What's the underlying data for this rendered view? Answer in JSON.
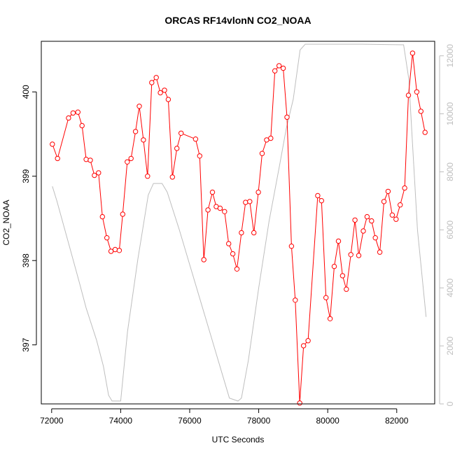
{
  "chart_data": {
    "type": "line",
    "title": "ORCAS RF14vlonN CO2_NOAA",
    "xlabel": "UTC Seconds",
    "ylabel": "CO2_NOAA",
    "xlim": [
      71700,
      83100
    ],
    "ylim": [
      396.3,
      400.6
    ],
    "x_ticks": [
      "72000",
      "74000",
      "76000",
      "78000",
      "80000",
      "82000"
    ],
    "y_ticks": [
      "397",
      "398",
      "399",
      "400"
    ],
    "y2lim": [
      0,
      12500
    ],
    "y2_ticks": [
      "0",
      "2000",
      "4000",
      "6000",
      "8000",
      "10000",
      "12000"
    ],
    "grid": false,
    "colors": {
      "primary": "#ff0000",
      "secondary": "#bebebe",
      "axis": "#000000"
    },
    "series": [
      {
        "axis": "left",
        "style": "line-points",
        "color": "#ff0000",
        "points": [
          [
            72020,
            399.38
          ],
          [
            72170,
            399.21
          ],
          [
            72490,
            399.69
          ],
          [
            72620,
            399.75
          ],
          [
            72760,
            399.76
          ],
          [
            72880,
            399.6
          ],
          [
            73000,
            399.2
          ],
          [
            73120,
            399.19
          ],
          [
            73240,
            399.01
          ],
          [
            73360,
            399.04
          ],
          [
            73470,
            398.52
          ],
          [
            73600,
            398.27
          ],
          [
            73720,
            398.11
          ],
          [
            73840,
            398.13
          ],
          [
            73960,
            398.12
          ],
          [
            74060,
            398.55
          ],
          [
            74190,
            399.17
          ],
          [
            74300,
            399.21
          ],
          [
            74430,
            399.53
          ],
          [
            74540,
            399.83
          ],
          [
            74660,
            399.43
          ],
          [
            74780,
            399.0
          ],
          [
            74900,
            400.11
          ],
          [
            75030,
            400.17
          ],
          [
            75150,
            399.99
          ],
          [
            75270,
            400.02
          ],
          [
            75380,
            399.91
          ],
          [
            75500,
            398.99
          ],
          [
            75630,
            399.33
          ],
          [
            75750,
            399.51
          ],
          [
            76170,
            399.44
          ],
          [
            76290,
            399.24
          ],
          [
            76410,
            398.01
          ],
          [
            76530,
            398.6
          ],
          [
            76660,
            398.81
          ],
          [
            76770,
            398.64
          ],
          [
            76880,
            398.62
          ],
          [
            77010,
            398.58
          ],
          [
            77130,
            398.2
          ],
          [
            77250,
            398.08
          ],
          [
            77370,
            397.9
          ],
          [
            77500,
            398.33
          ],
          [
            77620,
            398.69
          ],
          [
            77740,
            398.7
          ],
          [
            77860,
            398.33
          ],
          [
            77990,
            398.81
          ],
          [
            78100,
            399.27
          ],
          [
            78230,
            399.43
          ],
          [
            78350,
            399.45
          ],
          [
            78470,
            400.25
          ],
          [
            78590,
            400.31
          ],
          [
            78710,
            400.28
          ],
          [
            78820,
            399.7
          ],
          [
            78950,
            398.17
          ],
          [
            79060,
            397.53
          ],
          [
            79190,
            396.31
          ],
          [
            79300,
            396.99
          ],
          [
            79430,
            397.05
          ],
          [
            79710,
            398.77
          ],
          [
            79820,
            398.71
          ],
          [
            79950,
            397.56
          ],
          [
            80070,
            397.31
          ],
          [
            80190,
            397.93
          ],
          [
            80310,
            398.23
          ],
          [
            80430,
            397.82
          ],
          [
            80540,
            397.66
          ],
          [
            80670,
            398.07
          ],
          [
            80790,
            398.48
          ],
          [
            80900,
            398.06
          ],
          [
            81030,
            398.35
          ],
          [
            81140,
            398.52
          ],
          [
            81270,
            398.47
          ],
          [
            81380,
            398.27
          ],
          [
            81510,
            398.1
          ],
          [
            81630,
            398.7
          ],
          [
            81750,
            398.82
          ],
          [
            81870,
            398.54
          ],
          [
            81980,
            398.49
          ],
          [
            82100,
            398.66
          ],
          [
            82230,
            398.86
          ],
          [
            82340,
            399.96
          ],
          [
            82460,
            400.46
          ],
          [
            82580,
            400.0
          ],
          [
            82700,
            399.77
          ],
          [
            82820,
            399.52
          ]
        ]
      },
      {
        "axis": "right",
        "style": "line",
        "color": "#bebebe",
        "points": [
          [
            72020,
            7500
          ],
          [
            72150,
            7000
          ],
          [
            72500,
            5500
          ],
          [
            72800,
            4200
          ],
          [
            73000,
            3300
          ],
          [
            73300,
            2200
          ],
          [
            73500,
            1300
          ],
          [
            73650,
            300
          ],
          [
            73750,
            100
          ],
          [
            74000,
            100
          ],
          [
            74200,
            2500
          ],
          [
            74500,
            5000
          ],
          [
            74800,
            7200
          ],
          [
            74950,
            7600
          ],
          [
            75200,
            7600
          ],
          [
            75350,
            7300
          ],
          [
            75700,
            6000
          ],
          [
            76000,
            4800
          ],
          [
            76300,
            3600
          ],
          [
            76600,
            2400
          ],
          [
            76900,
            1200
          ],
          [
            77150,
            200
          ],
          [
            77400,
            100
          ],
          [
            77500,
            200
          ],
          [
            77700,
            1500
          ],
          [
            78000,
            4000
          ],
          [
            78300,
            6300
          ],
          [
            78600,
            8200
          ],
          [
            78800,
            9500
          ],
          [
            79000,
            10500
          ],
          [
            79200,
            12200
          ],
          [
            79350,
            12400
          ],
          [
            80500,
            12400
          ],
          [
            81000,
            12400
          ],
          [
            82200,
            12380
          ],
          [
            82350,
            11200
          ],
          [
            82600,
            6000
          ],
          [
            82850,
            3000
          ]
        ]
      }
    ]
  }
}
